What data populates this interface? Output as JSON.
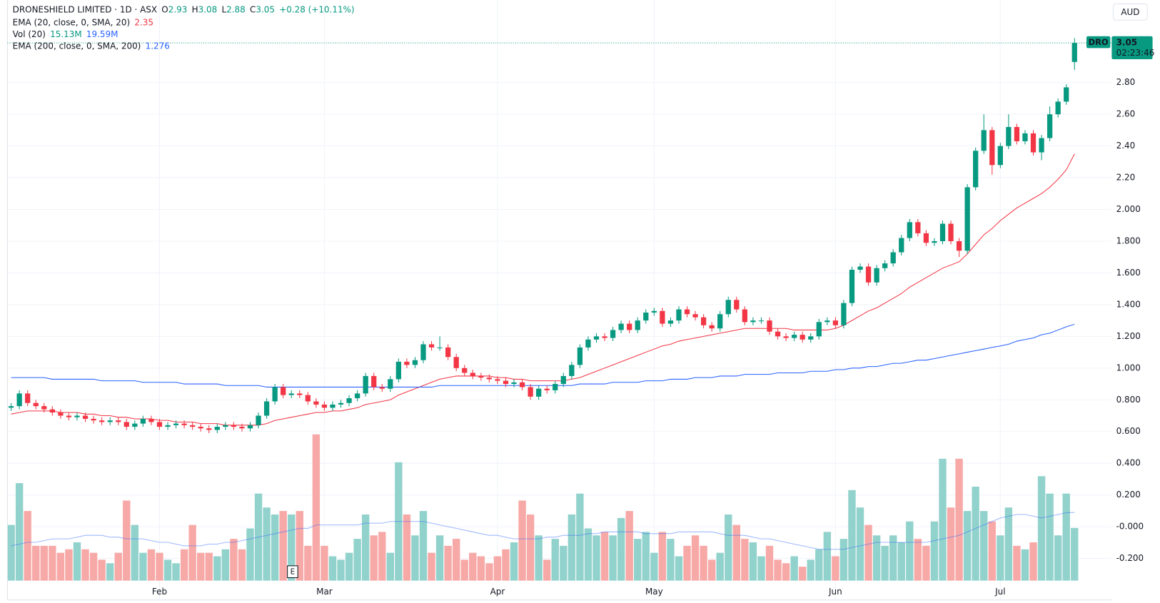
{
  "chart_data": {
    "type": "candlestick",
    "title": "DRONESHIELD LIMITED · 1D · ASX",
    "ohlc_header": [
      {
        "label": "O",
        "value": 2.93
      },
      {
        "label": "H",
        "value": 3.08
      },
      {
        "label": "L",
        "value": 2.88
      },
      {
        "label": "C",
        "value": 3.05
      }
    ],
    "change": "+0.28 (+10.11%)",
    "currency": "AUD",
    "last_price": {
      "symbol": "DRO",
      "value": 3.05,
      "countdown": "02:23:46"
    },
    "event_label": "E",
    "up_color": "#089981",
    "down_color": "#f23645",
    "ylim": [
      -0.34,
      3.32
    ],
    "yticks": [
      {
        "value": 2.8,
        "label": "2.80"
      },
      {
        "value": 2.6,
        "label": "2.60"
      },
      {
        "value": 2.4,
        "label": "2.40"
      },
      {
        "value": 2.2,
        "label": "2.20"
      },
      {
        "value": 2.0,
        "label": "2.000"
      },
      {
        "value": 1.8,
        "label": "1.800"
      },
      {
        "value": 1.6,
        "label": "1.600"
      },
      {
        "value": 1.4,
        "label": "1.400"
      },
      {
        "value": 1.2,
        "label": "1.200"
      },
      {
        "value": 1.0,
        "label": "1.000"
      },
      {
        "value": 0.8,
        "label": "0.800"
      },
      {
        "value": 0.6,
        "label": "0.600"
      },
      {
        "value": 0.4,
        "label": "0.400"
      },
      {
        "value": 0.2,
        "label": "0.200"
      },
      {
        "value": 0,
        "label": "-0.000"
      },
      {
        "value": -0.2,
        "label": "-0.200"
      }
    ],
    "grid": true,
    "categories": [
      null,
      null,
      null,
      null,
      null,
      null,
      null,
      null,
      null,
      null,
      null,
      null,
      null,
      null,
      null,
      null,
      null,
      null,
      "Feb",
      null,
      null,
      null,
      null,
      null,
      null,
      null,
      null,
      null,
      null,
      null,
      null,
      null,
      null,
      null,
      null,
      null,
      null,
      null,
      "Mar",
      null,
      null,
      null,
      null,
      null,
      null,
      null,
      null,
      null,
      null,
      null,
      null,
      null,
      null,
      null,
      null,
      null,
      null,
      null,
      null,
      "Apr",
      null,
      null,
      null,
      null,
      null,
      null,
      null,
      null,
      null,
      null,
      null,
      null,
      null,
      null,
      null,
      null,
      null,
      null,
      "May",
      null,
      null,
      null,
      null,
      null,
      null,
      null,
      null,
      null,
      null,
      null,
      null,
      null,
      null,
      null,
      null,
      null,
      null,
      null,
      null,
      null,
      "Jun",
      null,
      null,
      null,
      null,
      null,
      null,
      null,
      null,
      null,
      null,
      null,
      null,
      null,
      null,
      null,
      null,
      null,
      null,
      null,
      "Jul",
      null,
      null,
      null,
      null,
      null,
      null,
      null,
      null,
      null
    ],
    "open": [
      0.75,
      0.76,
      0.84,
      0.78,
      0.76,
      0.74,
      0.72,
      0.7,
      0.69,
      0.7,
      0.68,
      0.67,
      0.66,
      0.67,
      0.66,
      0.63,
      0.65,
      0.68,
      0.66,
      0.63,
      0.64,
      0.65,
      0.64,
      0.63,
      0.62,
      0.61,
      0.63,
      0.64,
      0.63,
      0.62,
      0.64,
      0.7,
      0.79,
      0.88,
      0.83,
      0.84,
      0.83,
      0.79,
      0.77,
      0.75,
      0.77,
      0.78,
      0.81,
      0.84,
      0.95,
      0.88,
      0.87,
      0.93,
      1.04,
      1.02,
      1.05,
      1.15,
      1.13,
      1.13,
      1.07,
      1.0,
      0.97,
      0.95,
      0.94,
      0.93,
      0.92,
      0.9,
      0.91,
      0.88,
      0.82,
      0.87,
      0.86,
      0.9,
      0.95,
      1.02,
      1.13,
      1.18,
      1.2,
      1.19,
      1.24,
      1.28,
      1.24,
      1.3,
      1.35,
      1.36,
      1.28,
      1.3,
      1.37,
      1.34,
      1.32,
      1.27,
      1.25,
      1.34,
      1.43,
      1.37,
      1.29,
      1.3,
      1.3,
      1.23,
      1.2,
      1.19,
      1.21,
      1.18,
      1.2,
      1.29,
      1.3,
      1.27,
      1.41,
      1.62,
      1.64,
      1.54,
      1.63,
      1.66,
      1.73,
      1.82,
      1.92,
      1.85,
      1.79,
      1.8,
      1.91,
      1.8,
      1.74,
      2.14,
      2.37,
      2.5,
      2.28,
      2.4,
      2.52,
      2.43,
      2.48,
      2.36,
      2.45,
      2.6,
      2.68,
      2.93
    ],
    "high": [
      0.78,
      0.86,
      0.86,
      0.8,
      0.78,
      0.76,
      0.74,
      0.72,
      0.72,
      0.72,
      0.7,
      0.69,
      0.69,
      0.69,
      0.68,
      0.67,
      0.7,
      0.7,
      0.68,
      0.66,
      0.67,
      0.67,
      0.66,
      0.65,
      0.64,
      0.65,
      0.66,
      0.66,
      0.65,
      0.66,
      0.72,
      0.81,
      0.9,
      0.9,
      0.86,
      0.86,
      0.85,
      0.81,
      0.79,
      0.79,
      0.8,
      0.83,
      0.86,
      0.97,
      0.97,
      0.9,
      0.95,
      1.06,
      1.06,
      1.07,
      1.17,
      1.17,
      1.2,
      1.15,
      1.09,
      1.02,
      0.99,
      0.97,
      0.96,
      0.95,
      0.94,
      0.93,
      0.93,
      0.9,
      0.89,
      0.89,
      0.92,
      0.97,
      1.04,
      1.15,
      1.2,
      1.22,
      1.22,
      1.26,
      1.3,
      1.3,
      1.32,
      1.37,
      1.38,
      1.38,
      1.32,
      1.39,
      1.39,
      1.36,
      1.34,
      1.29,
      1.36,
      1.45,
      1.45,
      1.39,
      1.32,
      1.32,
      1.32,
      1.25,
      1.22,
      1.23,
      1.23,
      1.22,
      1.31,
      1.32,
      1.32,
      1.43,
      1.64,
      1.66,
      1.66,
      1.65,
      1.68,
      1.75,
      1.84,
      1.94,
      1.94,
      1.87,
      1.82,
      1.93,
      1.93,
      1.82,
      2.16,
      2.39,
      2.6,
      2.52,
      2.42,
      2.6,
      2.54,
      2.5,
      2.5,
      2.47,
      2.65,
      2.7,
      2.79,
      3.08
    ],
    "low": [
      0.73,
      0.74,
      0.76,
      0.74,
      0.72,
      0.7,
      0.68,
      0.67,
      0.67,
      0.66,
      0.65,
      0.64,
      0.64,
      0.64,
      0.61,
      0.61,
      0.63,
      0.64,
      0.61,
      0.61,
      0.62,
      0.62,
      0.61,
      0.6,
      0.59,
      0.59,
      0.61,
      0.61,
      0.6,
      0.6,
      0.62,
      0.68,
      0.77,
      0.81,
      0.81,
      0.81,
      0.77,
      0.75,
      0.73,
      0.73,
      0.75,
      0.76,
      0.79,
      0.82,
      0.86,
      0.85,
      0.85,
      0.91,
      1.0,
      1.0,
      1.03,
      1.11,
      1.11,
      1.05,
      0.98,
      0.95,
      0.93,
      0.92,
      0.91,
      0.9,
      0.88,
      0.88,
      0.86,
      0.8,
      0.8,
      0.84,
      0.84,
      0.88,
      0.93,
      1.0,
      1.11,
      1.16,
      1.17,
      1.17,
      1.22,
      1.22,
      1.22,
      1.28,
      1.33,
      1.26,
      1.26,
      1.28,
      1.32,
      1.3,
      1.25,
      1.23,
      1.23,
      1.32,
      1.35,
      1.27,
      1.27,
      1.28,
      1.21,
      1.18,
      1.17,
      1.17,
      1.16,
      1.16,
      1.18,
      1.27,
      1.25,
      1.25,
      1.39,
      1.6,
      1.52,
      1.52,
      1.61,
      1.64,
      1.71,
      1.8,
      1.83,
      1.77,
      1.77,
      1.78,
      1.78,
      1.7,
      1.72,
      2.12,
      2.35,
      2.22,
      2.26,
      2.38,
      2.41,
      2.41,
      2.34,
      2.31,
      2.43,
      2.58,
      2.66,
      2.88
    ],
    "close": [
      0.76,
      0.84,
      0.78,
      0.76,
      0.74,
      0.72,
      0.7,
      0.69,
      0.7,
      0.68,
      0.67,
      0.66,
      0.67,
      0.66,
      0.63,
      0.65,
      0.68,
      0.66,
      0.63,
      0.64,
      0.65,
      0.64,
      0.63,
      0.62,
      0.61,
      0.63,
      0.64,
      0.63,
      0.62,
      0.64,
      0.7,
      0.79,
      0.88,
      0.83,
      0.84,
      0.83,
      0.79,
      0.77,
      0.75,
      0.77,
      0.78,
      0.81,
      0.84,
      0.95,
      0.88,
      0.87,
      0.93,
      1.04,
      1.02,
      1.05,
      1.15,
      1.13,
      1.13,
      1.07,
      1.0,
      0.97,
      0.95,
      0.94,
      0.93,
      0.92,
      0.9,
      0.91,
      0.88,
      0.82,
      0.87,
      0.86,
      0.9,
      0.95,
      1.02,
      1.13,
      1.18,
      1.2,
      1.19,
      1.24,
      1.28,
      1.24,
      1.3,
      1.35,
      1.36,
      1.28,
      1.3,
      1.37,
      1.34,
      1.32,
      1.27,
      1.25,
      1.34,
      1.43,
      1.37,
      1.29,
      1.3,
      1.3,
      1.23,
      1.2,
      1.19,
      1.21,
      1.18,
      1.2,
      1.29,
      1.3,
      1.27,
      1.41,
      1.62,
      1.64,
      1.54,
      1.63,
      1.66,
      1.73,
      1.82,
      1.92,
      1.85,
      1.79,
      1.8,
      1.91,
      1.8,
      1.74,
      2.14,
      2.37,
      2.5,
      2.28,
      2.4,
      2.52,
      2.43,
      2.48,
      2.36,
      2.45,
      2.6,
      2.68,
      2.77,
      3.05
    ],
    "series": [
      {
        "name": "EMA (20, close, 0, SMA, 20)",
        "color": "#f23645",
        "values": [
          0.71,
          0.72,
          0.73,
          0.73,
          0.73,
          0.73,
          0.72,
          0.72,
          0.72,
          0.71,
          0.71,
          0.7,
          0.7,
          0.69,
          0.69,
          0.68,
          0.68,
          0.68,
          0.67,
          0.67,
          0.66,
          0.66,
          0.66,
          0.65,
          0.65,
          0.65,
          0.64,
          0.64,
          0.64,
          0.64,
          0.64,
          0.65,
          0.67,
          0.68,
          0.69,
          0.7,
          0.71,
          0.72,
          0.72,
          0.73,
          0.73,
          0.74,
          0.75,
          0.77,
          0.78,
          0.79,
          0.8,
          0.83,
          0.85,
          0.87,
          0.89,
          0.91,
          0.93,
          0.94,
          0.95,
          0.95,
          0.95,
          0.95,
          0.95,
          0.94,
          0.94,
          0.93,
          0.93,
          0.92,
          0.92,
          0.92,
          0.92,
          0.92,
          0.93,
          0.94,
          0.96,
          0.98,
          1.0,
          1.02,
          1.04,
          1.06,
          1.08,
          1.1,
          1.12,
          1.14,
          1.15,
          1.17,
          1.18,
          1.19,
          1.2,
          1.21,
          1.22,
          1.23,
          1.24,
          1.25,
          1.25,
          1.25,
          1.25,
          1.25,
          1.25,
          1.24,
          1.24,
          1.24,
          1.24,
          1.24,
          1.25,
          1.27,
          1.3,
          1.33,
          1.36,
          1.38,
          1.41,
          1.44,
          1.47,
          1.51,
          1.54,
          1.57,
          1.6,
          1.63,
          1.65,
          1.67,
          1.72,
          1.78,
          1.84,
          1.88,
          1.93,
          1.97,
          2.01,
          2.04,
          2.07,
          2.1,
          2.14,
          2.19,
          2.25,
          2.35
        ]
      },
      {
        "name": "EMA (200, close, 0, SMA, 200)",
        "color": "#2962ff",
        "values": [
          0.94,
          0.94,
          0.94,
          0.94,
          0.94,
          0.93,
          0.93,
          0.93,
          0.93,
          0.93,
          0.93,
          0.92,
          0.92,
          0.92,
          0.92,
          0.92,
          0.91,
          0.91,
          0.91,
          0.91,
          0.91,
          0.9,
          0.9,
          0.9,
          0.9,
          0.9,
          0.89,
          0.89,
          0.89,
          0.89,
          0.89,
          0.88,
          0.88,
          0.88,
          0.88,
          0.88,
          0.88,
          0.88,
          0.88,
          0.88,
          0.88,
          0.88,
          0.88,
          0.88,
          0.88,
          0.88,
          0.88,
          0.88,
          0.88,
          0.88,
          0.88,
          0.88,
          0.89,
          0.89,
          0.89,
          0.89,
          0.89,
          0.89,
          0.89,
          0.89,
          0.89,
          0.89,
          0.89,
          0.89,
          0.89,
          0.89,
          0.89,
          0.89,
          0.89,
          0.9,
          0.9,
          0.9,
          0.9,
          0.91,
          0.91,
          0.91,
          0.91,
          0.92,
          0.92,
          0.92,
          0.93,
          0.93,
          0.93,
          0.94,
          0.94,
          0.94,
          0.95,
          0.95,
          0.95,
          0.96,
          0.96,
          0.96,
          0.96,
          0.97,
          0.97,
          0.97,
          0.97,
          0.98,
          0.98,
          0.98,
          0.99,
          0.99,
          1.0,
          1.0,
          1.01,
          1.01,
          1.02,
          1.03,
          1.03,
          1.04,
          1.05,
          1.05,
          1.06,
          1.07,
          1.08,
          1.09,
          1.1,
          1.11,
          1.12,
          1.13,
          1.14,
          1.15,
          1.17,
          1.18,
          1.19,
          1.21,
          1.22,
          1.24,
          1.26,
          1.276
        ]
      }
    ],
    "volume": {
      "name": "Vol (20)",
      "up_color": "#92d2cc",
      "down_color": "#f7a9a7",
      "ma_color": "#2962ff",
      "last_label": "15.13M",
      "ma_last_label": "19.59M",
      "values": [
        16,
        28,
        20,
        10,
        10,
        10,
        8,
        9,
        11,
        9,
        8,
        6,
        5,
        8,
        23,
        16,
        8,
        9,
        8,
        6,
        5,
        9,
        16,
        8,
        8,
        7,
        9,
        12,
        9,
        15,
        25,
        21,
        19,
        20,
        19,
        20,
        10,
        42,
        10,
        7,
        6,
        8,
        12,
        19,
        13,
        14,
        8,
        34,
        19,
        13,
        20,
        8,
        13,
        10,
        12,
        6,
        8,
        7,
        5,
        7,
        9,
        11,
        23,
        19,
        13,
        6,
        12,
        10,
        19,
        25,
        15,
        13,
        14,
        13,
        18,
        20,
        12,
        14,
        8,
        14,
        12,
        7,
        10,
        13,
        10,
        6,
        8,
        19,
        16,
        12,
        11,
        7,
        10,
        6,
        5,
        7,
        4,
        6,
        9,
        14,
        7,
        12,
        26,
        21,
        16,
        13,
        10,
        13,
        11,
        17,
        12,
        10,
        17,
        35,
        21,
        35,
        20,
        27,
        20,
        17,
        13,
        21,
        10,
        9,
        11,
        30,
        25,
        13,
        25,
        15.13
      ],
      "ma_values": [
        10,
        10.5,
        11,
        11,
        11.5,
        12,
        12,
        12,
        12.5,
        13,
        13,
        13,
        12.5,
        12.5,
        12,
        12,
        12,
        11.5,
        11,
        11,
        10.5,
        10,
        10,
        10,
        10.5,
        10.5,
        11,
        11,
        11.5,
        12,
        12.5,
        13,
        13.5,
        14,
        14.5,
        15,
        15,
        16,
        16,
        16,
        16,
        16,
        16,
        16.5,
        16.5,
        16.5,
        17,
        17,
        17,
        17,
        17,
        16.5,
        16,
        15.5,
        15,
        14.5,
        14,
        13.5,
        13,
        13,
        12.5,
        12,
        12,
        12,
        12,
        12.5,
        12.5,
        13,
        13,
        13,
        13.5,
        13.5,
        14,
        14,
        14,
        14,
        14,
        13.5,
        13.5,
        13.5,
        13.5,
        14,
        14,
        14,
        14,
        14,
        13.5,
        13,
        13,
        13,
        12.5,
        12,
        12,
        11.5,
        11,
        10.5,
        10,
        9.5,
        9,
        9,
        9,
        9,
        9.5,
        10,
        10.5,
        11,
        11,
        11,
        11,
        11,
        11,
        11,
        11.5,
        12,
        12.5,
        13,
        14,
        15,
        16,
        17,
        18,
        18.5,
        19,
        19,
        18.5,
        18,
        18.5,
        19,
        19.5,
        19.59
      ]
    }
  }
}
